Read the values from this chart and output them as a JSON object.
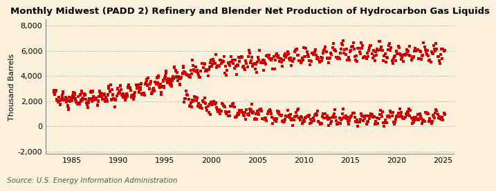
{
  "title": "Monthly Midwest (PADD 2) Refinery and Blender Net Production of Hydrocarbon Gas Liquids",
  "ylabel": "Thousand Barrels",
  "source": "Source: U.S. Energy Information Administration",
  "background_color": "#FAF0DC",
  "plot_bg_color": "#FAF0DC",
  "marker_color": "#CC0000",
  "marker": "s",
  "markersize": 2.8,
  "ylim": [
    -2200,
    8500
  ],
  "yticks": [
    -2000,
    0,
    2000,
    4000,
    6000,
    8000
  ],
  "ytick_labels": [
    "-2,000",
    "0",
    "2,000",
    "4,000",
    "6,000",
    "8,000"
  ],
  "xticks": [
    1985,
    1990,
    1995,
    2000,
    2005,
    2010,
    2015,
    2020,
    2025
  ],
  "xlim": [
    1982.2,
    2026.2
  ],
  "start_year": 1983,
  "end_year": 2025,
  "title_fontsize": 9.5,
  "axis_fontsize": 8,
  "source_fontsize": 7.5
}
